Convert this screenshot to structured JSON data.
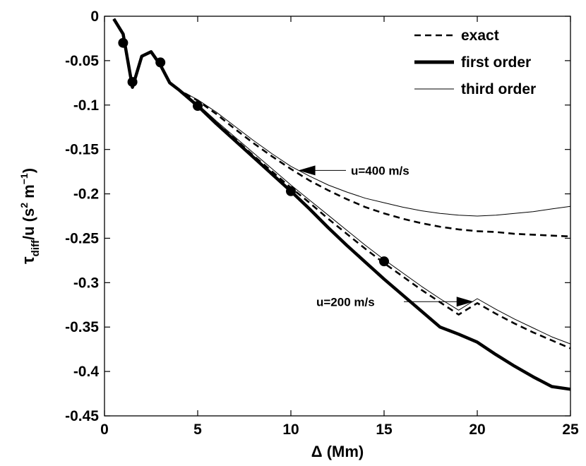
{
  "chart_data": {
    "type": "line",
    "title": "",
    "xlabel": "Δ  (Mm)",
    "ylabel_main": "τ",
    "ylabel_sub": "diff",
    "ylabel_mid": "/u  (s",
    "ylabel_sup1": "2",
    "ylabel_unit2": " m",
    "ylabel_sup2": "−1",
    "ylabel_end": ")",
    "xlim": [
      0,
      25
    ],
    "ylim": [
      -0.45,
      0
    ],
    "grid": false,
    "legend_position": "top-right",
    "x_ticks": [
      0,
      5,
      10,
      15,
      20,
      25
    ],
    "x_tick_labels": [
      "0",
      "5",
      "10",
      "15",
      "20",
      "25"
    ],
    "y_ticks": [
      0,
      -0.05,
      -0.1,
      -0.15,
      -0.2,
      -0.25,
      -0.3,
      -0.35,
      -0.4,
      -0.45
    ],
    "y_tick_labels": [
      "0",
      "-0.05",
      "-0.1",
      "-0.15",
      "-0.2",
      "-0.25",
      "-0.3",
      "-0.35",
      "-0.4",
      "-0.45"
    ],
    "series": [
      {
        "name": "exact",
        "style": "dashed",
        "group": "u=400 m/s",
        "x": [
          0.5,
          1,
          1.5,
          2,
          2.5,
          3,
          3.5,
          4,
          5,
          6,
          7,
          8,
          9,
          10,
          11,
          12,
          13,
          14,
          15,
          16,
          17,
          18,
          19,
          20,
          21,
          22,
          23,
          24,
          25
        ],
        "y": [
          -0.003,
          -0.02,
          -0.08,
          -0.045,
          -0.04,
          -0.055,
          -0.075,
          -0.083,
          -0.095,
          -0.11,
          -0.127,
          -0.143,
          -0.158,
          -0.172,
          -0.185,
          -0.196,
          -0.206,
          -0.215,
          -0.222,
          -0.228,
          -0.233,
          -0.237,
          -0.24,
          -0.242,
          -0.243,
          -0.245,
          -0.246,
          -0.247,
          -0.248
        ]
      },
      {
        "name": "third order",
        "style": "thin",
        "group": "u=400 m/s",
        "x": [
          0.5,
          1,
          1.5,
          2,
          2.5,
          3,
          3.5,
          4,
          5,
          6,
          7,
          8,
          9,
          10,
          11,
          12,
          13,
          14,
          15,
          16,
          17,
          18,
          19,
          20,
          21,
          22,
          23,
          24,
          25
        ],
        "y": [
          -0.003,
          -0.02,
          -0.08,
          -0.045,
          -0.04,
          -0.055,
          -0.075,
          -0.083,
          -0.094,
          -0.108,
          -0.124,
          -0.14,
          -0.155,
          -0.169,
          -0.18,
          -0.19,
          -0.198,
          -0.205,
          -0.21,
          -0.215,
          -0.219,
          -0.222,
          -0.224,
          -0.225,
          -0.224,
          -0.222,
          -0.22,
          -0.217,
          -0.214
        ]
      },
      {
        "name": "exact",
        "style": "dashed",
        "group": "u=200 m/s",
        "x": [
          0.5,
          1,
          1.5,
          2,
          2.5,
          3,
          3.5,
          4,
          5,
          6,
          7,
          8,
          9,
          10,
          11,
          12,
          13,
          14,
          15,
          16,
          17,
          18,
          19,
          20,
          21,
          22,
          23,
          24,
          25
        ],
        "y": [
          -0.003,
          -0.02,
          -0.08,
          -0.045,
          -0.04,
          -0.055,
          -0.075,
          -0.083,
          -0.1,
          -0.12,
          -0.138,
          -0.157,
          -0.175,
          -0.193,
          -0.21,
          -0.228,
          -0.245,
          -0.262,
          -0.278,
          -0.293,
          -0.308,
          -0.322,
          -0.336,
          -0.323,
          -0.335,
          -0.346,
          -0.356,
          -0.365,
          -0.374
        ]
      },
      {
        "name": "third order",
        "style": "thin",
        "group": "u=200 m/s",
        "x": [
          0.5,
          1,
          1.5,
          2,
          2.5,
          3,
          3.5,
          4,
          5,
          6,
          7,
          8,
          9,
          10,
          11,
          12,
          13,
          14,
          15,
          16,
          17,
          18,
          19,
          20,
          21,
          22,
          23,
          24,
          25
        ],
        "y": [
          -0.003,
          -0.02,
          -0.08,
          -0.045,
          -0.04,
          -0.055,
          -0.075,
          -0.083,
          -0.099,
          -0.118,
          -0.136,
          -0.154,
          -0.172,
          -0.19,
          -0.207,
          -0.224,
          -0.241,
          -0.258,
          -0.274,
          -0.289,
          -0.304,
          -0.318,
          -0.331,
          -0.318,
          -0.33,
          -0.341,
          -0.351,
          -0.361,
          -0.369
        ]
      },
      {
        "name": "first order",
        "style": "thick",
        "group": "u=200 m/s",
        "x": [
          0.5,
          1,
          1.5,
          2,
          2.5,
          3,
          3.5,
          4,
          5,
          6,
          7,
          8,
          9,
          10,
          11,
          12,
          13,
          14,
          15,
          16,
          17,
          18,
          19,
          20,
          21,
          22,
          23,
          24,
          25
        ],
        "y": [
          -0.003,
          -0.02,
          -0.08,
          -0.045,
          -0.04,
          -0.055,
          -0.075,
          -0.083,
          -0.101,
          -0.121,
          -0.14,
          -0.159,
          -0.178,
          -0.197,
          -0.217,
          -0.238,
          -0.258,
          -0.277,
          -0.296,
          -0.314,
          -0.332,
          -0.35,
          -0.358,
          -0.367,
          -0.381,
          -0.394,
          -0.406,
          -0.417,
          -0.42
        ]
      }
    ],
    "markers": [
      {
        "x": 1,
        "y": -0.03
      },
      {
        "x": 1.5,
        "y": -0.074
      },
      {
        "x": 3,
        "y": -0.052
      },
      {
        "x": 5,
        "y": -0.101
      },
      {
        "x": 10,
        "y": -0.197
      },
      {
        "x": 15,
        "y": -0.276
      }
    ],
    "legend": [
      {
        "label": "exact",
        "style": "dashed"
      },
      {
        "label": "first order",
        "style": "thick"
      },
      {
        "label": "third order",
        "style": "thin"
      }
    ],
    "annotations": [
      {
        "text": "u=400 m/s",
        "arrow_to": {
          "x": 10.4,
          "y": -0.172
        }
      },
      {
        "text": "u=200 m/s",
        "arrow_to": {
          "x": 19.8,
          "y": -0.323
        }
      }
    ]
  }
}
